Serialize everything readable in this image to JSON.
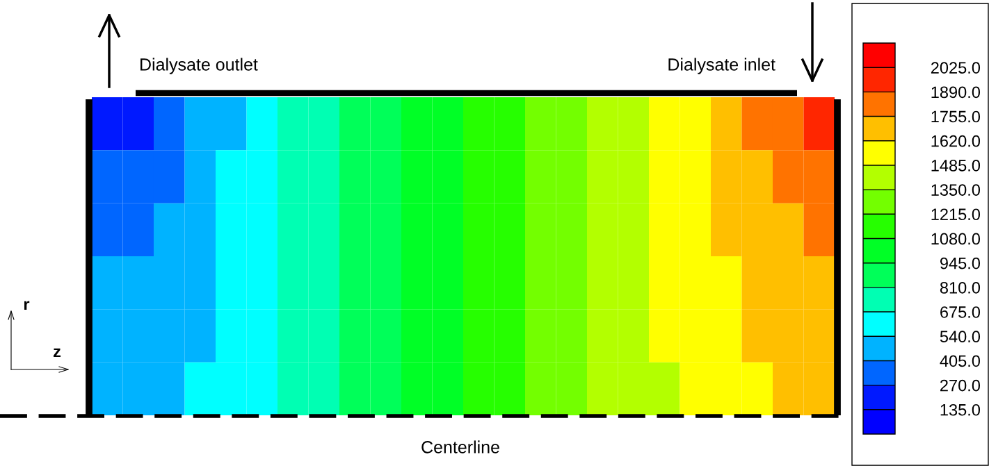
{
  "chart_data": {
    "type": "heatmap",
    "categories": [
      null,
      null,
      null,
      null,
      null,
      null,
      null,
      null,
      null,
      null,
      null,
      null,
      null,
      null,
      null,
      null,
      null,
      null,
      null,
      null,
      null,
      null,
      null,
      null
    ],
    "y_categories": [
      null,
      null,
      null,
      null,
      null,
      null
    ],
    "cells": [
      [
        200,
        200,
        340,
        470,
        470,
        610,
        740,
        740,
        880,
        880,
        1010,
        1010,
        1150,
        1150,
        1280,
        1280,
        1420,
        1420,
        1550,
        1550,
        1690,
        1820,
        1820,
        1960
      ],
      [
        340,
        340,
        340,
        470,
        610,
        610,
        740,
        740,
        880,
        880,
        1010,
        1010,
        1150,
        1150,
        1280,
        1280,
        1420,
        1420,
        1550,
        1550,
        1690,
        1690,
        1820,
        1820
      ],
      [
        340,
        340,
        470,
        470,
        610,
        610,
        740,
        740,
        880,
        880,
        1010,
        1010,
        1150,
        1150,
        1280,
        1280,
        1420,
        1420,
        1550,
        1550,
        1690,
        1690,
        1690,
        1820
      ],
      [
        470,
        470,
        470,
        470,
        610,
        610,
        740,
        740,
        880,
        880,
        1010,
        1010,
        1150,
        1150,
        1280,
        1280,
        1420,
        1420,
        1550,
        1550,
        1550,
        1690,
        1690,
        1690
      ],
      [
        470,
        470,
        470,
        470,
        610,
        610,
        740,
        740,
        880,
        880,
        1010,
        1010,
        1150,
        1150,
        1280,
        1280,
        1420,
        1420,
        1550,
        1550,
        1550,
        1690,
        1690,
        1690
      ],
      [
        470,
        470,
        470,
        610,
        610,
        610,
        740,
        740,
        880,
        880,
        1010,
        1010,
        1150,
        1150,
        1280,
        1280,
        1420,
        1420,
        1420,
        1550,
        1550,
        1550,
        1690,
        1690
      ]
    ],
    "clim": [
      0,
      2160
    ],
    "cticks": [
      {
        "value": 135,
        "label": "135.0"
      },
      {
        "value": 270,
        "label": "270.0"
      },
      {
        "value": 405,
        "label": "405.0"
      },
      {
        "value": 540,
        "label": "540.0"
      },
      {
        "value": 675,
        "label": "675.0"
      },
      {
        "value": 810,
        "label": "810.0"
      },
      {
        "value": 945,
        "label": "945.0"
      },
      {
        "value": 1080,
        "label": "1080.0"
      },
      {
        "value": 1215,
        "label": "1215.0"
      },
      {
        "value": 1350,
        "label": "1350.0"
      },
      {
        "value": 1485,
        "label": "1485.0"
      },
      {
        "value": 1620,
        "label": "1620.0"
      },
      {
        "value": 1755,
        "label": "1755.0"
      },
      {
        "value": 1890,
        "label": "1890.0"
      },
      {
        "value": 2025,
        "label": "2025.0"
      }
    ],
    "colors": [
      "#0000ff",
      "#0019ff",
      "#0066ff",
      "#00b3ff",
      "#00ffff",
      "#00ffb3",
      "#00ff59",
      "#00ff26",
      "#26ff00",
      "#73ff00",
      "#b3ff00",
      "#ffff00",
      "#ffbf00",
      "#ff7300",
      "#ff2600",
      "#ff0000"
    ],
    "annotations": [
      "Dialysate outlet",
      "Dialysate inlet",
      "Centerline",
      "r",
      "z"
    ]
  }
}
